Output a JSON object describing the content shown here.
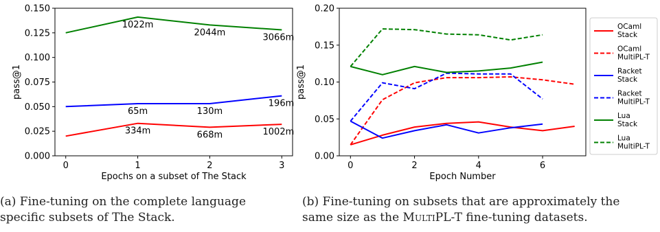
{
  "chart_data": [
    {
      "type": "line",
      "xlabel": "Epochs on a subset of The Stack",
      "ylabel": "pass@1",
      "xlim": [
        -0.15,
        3.15
      ],
      "ylim": [
        0.0,
        0.15
      ],
      "xticks": [
        0,
        1,
        2,
        3
      ],
      "yticks": [
        0.0,
        0.025,
        0.05,
        0.075,
        0.1,
        0.125,
        0.15
      ],
      "ytick_labels": [
        "0.000",
        "0.025",
        "0.050",
        "0.075",
        "0.100",
        "0.125",
        "0.150"
      ],
      "grid": false,
      "series": [
        {
          "color": "#ff0000",
          "x": [
            0,
            1,
            2,
            3
          ],
          "values": [
            0.02,
            0.033,
            0.029,
            0.032
          ],
          "point_labels": [
            "",
            "334m",
            "668m",
            "1002m"
          ]
        },
        {
          "color": "#0000ff",
          "x": [
            0,
            1,
            2,
            3
          ],
          "values": [
            0.05,
            0.053,
            0.053,
            0.061
          ],
          "point_labels": [
            "",
            "65m",
            "130m",
            "196m"
          ]
        },
        {
          "color": "#008000",
          "x": [
            0,
            1,
            2,
            3
          ],
          "values": [
            0.125,
            0.141,
            0.133,
            0.128
          ],
          "point_labels": [
            "",
            "1022m",
            "2044m",
            "3066m"
          ]
        }
      ]
    },
    {
      "type": "line",
      "xlabel": "Epoch Number",
      "ylabel": "pass@1",
      "xlim": [
        -0.35,
        7.35
      ],
      "ylim": [
        0.0,
        0.2
      ],
      "xticks": [
        0,
        2,
        4,
        6
      ],
      "yticks": [
        0.0,
        0.05,
        0.1,
        0.15,
        0.2
      ],
      "ytick_labels": [
        "0.00",
        "0.05",
        "0.10",
        "0.15",
        "0.20"
      ],
      "grid": false,
      "legend": "outside-right",
      "series": [
        {
          "name": "OCaml Stack",
          "color": "#ff0000",
          "dash": "solid",
          "x": [
            0,
            1,
            2,
            3,
            4,
            5,
            6,
            7
          ],
          "values": [
            0.015,
            0.028,
            0.039,
            0.044,
            0.046,
            0.039,
            0.034,
            0.04
          ]
        },
        {
          "name": "OCaml MultiPL-T",
          "color": "#ff0000",
          "dash": "dashed",
          "x": [
            0,
            1,
            2,
            3,
            4,
            5,
            6,
            7
          ],
          "values": [
            0.015,
            0.076,
            0.099,
            0.106,
            0.106,
            0.107,
            0.103,
            0.097
          ]
        },
        {
          "name": "Racket Stack",
          "color": "#0000ff",
          "dash": "solid",
          "x": [
            0,
            1,
            2,
            3,
            4,
            5,
            6
          ],
          "values": [
            0.047,
            0.024,
            0.034,
            0.042,
            0.031,
            0.038,
            0.043
          ]
        },
        {
          "name": "Racket MultiPL-T",
          "color": "#0000ff",
          "dash": "dashed",
          "x": [
            0,
            1,
            2,
            3,
            4,
            5,
            6
          ],
          "values": [
            0.047,
            0.099,
            0.091,
            0.112,
            0.111,
            0.111,
            0.077
          ]
        },
        {
          "name": "Lua Stack",
          "color": "#008000",
          "dash": "solid",
          "x": [
            0,
            1,
            2,
            3,
            4,
            5,
            6
          ],
          "values": [
            0.121,
            0.11,
            0.121,
            0.113,
            0.115,
            0.119,
            0.127
          ]
        },
        {
          "name": "Lua MultiPL-T",
          "color": "#008000",
          "dash": "dashed",
          "x": [
            0,
            1,
            2,
            3,
            4,
            5,
            6
          ],
          "values": [
            0.121,
            0.172,
            0.171,
            0.165,
            0.164,
            0.157,
            0.164
          ]
        }
      ]
    }
  ],
  "captions": {
    "a": {
      "line1": "(a) Fine-tuning on the complete language",
      "line2": "specific subsets of The Stack."
    },
    "b": {
      "line1": "(b) Fine-tuning on subsets that are approximately the",
      "line2_pre": "same size as the ",
      "line2_brand": "MultiPL-T",
      "line2_post": " fine-tuning datasets."
    }
  }
}
